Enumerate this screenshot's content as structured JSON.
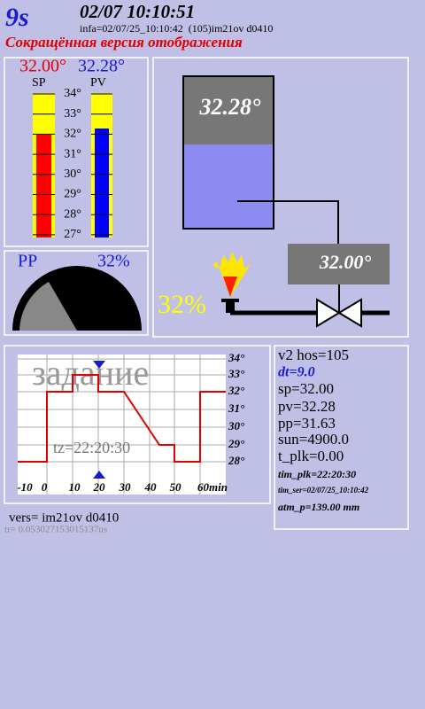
{
  "header": {
    "seconds": "9s",
    "datetime": "02/07 10:10:51",
    "info": "infa=02/07/25_10:10:42  (105)im21ov d0410",
    "subtitle": "Сокращённая версия отображения"
  },
  "thermo": {
    "sp": "32.00°",
    "pv": "32.28°",
    "sp_label": "SP",
    "pv_label": "PV",
    "scale": [
      "34°",
      "33°",
      "32°",
      "31°",
      "30°",
      "29°",
      "28°",
      "27°"
    ]
  },
  "gauge": {
    "label": "PP",
    "value": "32%"
  },
  "scheme": {
    "tank": "32.28°",
    "setpoint": "32.00°",
    "power": "32%"
  },
  "trend": {
    "title": "задание",
    "tz": "tz=22:20:30",
    "y_labels": [
      "34°",
      "33°",
      "32°",
      "31°",
      "30°",
      "29°",
      "28°"
    ],
    "x_labels": [
      "-10",
      "0",
      "10",
      "20",
      "30",
      "40",
      "50",
      "60min"
    ]
  },
  "status": {
    "hos": "v2 hos=105",
    "dt": "dt=9.0",
    "sp": "sp=32.00",
    "pv": "pv=32.28",
    "pp": "pp=31.63",
    "sun": "sun=4900.0",
    "t_plk": "t_plk=0.00",
    "tim_plk": "tim_plk=22:20:30",
    "tim_ser": "tim_ser=02/07/25_10:10:42",
    "atm": "atm_p=139.00 mm"
  },
  "footer": {
    "version": "vers= im21ov d0410",
    "tr": "tr= 0.053027153015137us"
  }
}
